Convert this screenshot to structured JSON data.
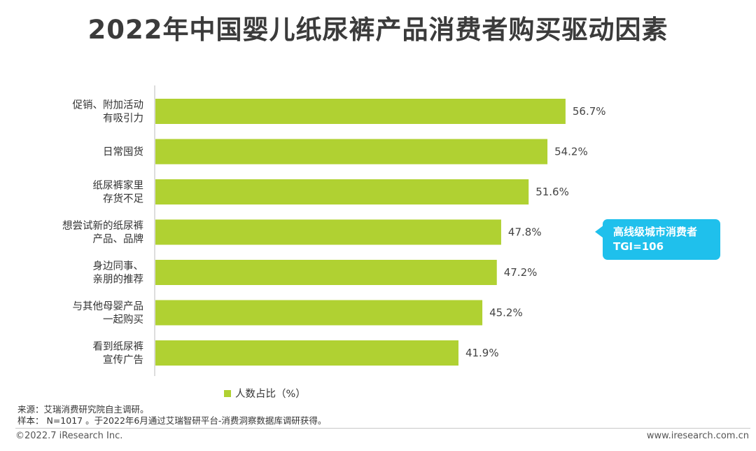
{
  "title": "2022年中国婴儿纸尿裤产品消费者购买驱动因素",
  "chart_data": {
    "type": "bar",
    "orientation": "horizontal",
    "categories": [
      [
        "促销、附加活动",
        "有吸引力"
      ],
      [
        "日常囤货"
      ],
      [
        "纸尿裤家里",
        "存货不足"
      ],
      [
        "想尝试新的纸尿裤",
        "产品、品牌"
      ],
      [
        "身边同事、",
        "亲朋的推荐"
      ],
      [
        "与其他母婴产品",
        "一起购买"
      ],
      [
        "看到纸尿裤",
        "宣传广告"
      ]
    ],
    "values": [
      56.7,
      54.2,
      51.6,
      47.8,
      47.2,
      45.2,
      41.9
    ],
    "value_labels": [
      "56.7%",
      "54.2%",
      "51.6%",
      "47.8%",
      "47.2%",
      "45.2%",
      "41.9%"
    ],
    "series": [
      {
        "name": "人数占比（%）",
        "values": [
          56.7,
          54.2,
          51.6,
          47.8,
          47.2,
          45.2,
          41.9
        ]
      }
    ],
    "xlim": [
      0,
      60
    ],
    "bar_color": "#b0d132",
    "grid": false,
    "legend_position": "bottom"
  },
  "callout": {
    "line1": "高线级城市消费者",
    "line2": "TGI=106",
    "color": "#1fc0ec"
  },
  "notes": {
    "source": "来源：艾瑞消费研究院自主调研。",
    "sample": "样本：  N=1017 。于2022年6月通过艾瑞智研平台-消费洞察数据库调研获得。"
  },
  "footer": {
    "copyright": "©2022.7 iResearch Inc.",
    "site": "www.iresearch.com.cn"
  }
}
